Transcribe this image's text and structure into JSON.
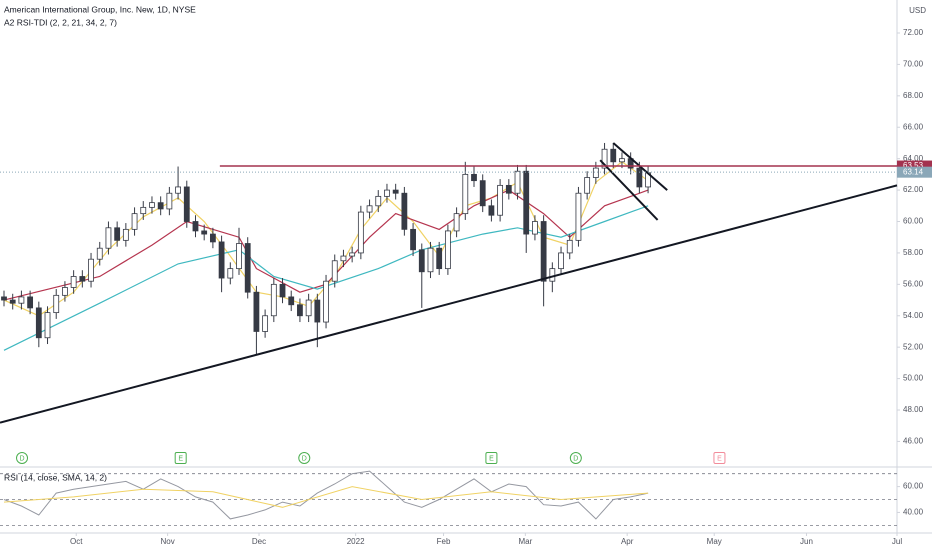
{
  "chart_data": {
    "type": "candlestick",
    "title": "American International Group, Inc. New, 1D, NYSE",
    "indicator_label": "A2 RSI-TDI (2, 2, 21, 34, 2, 7)",
    "currency": "USD",
    "xlim": [
      -0.46,
      102.6
    ],
    "ylim": [
      44.5,
      74.1
    ],
    "yticks": [
      {
        "value": 46,
        "label": "46.00"
      },
      {
        "value": 48,
        "label": "48.00"
      },
      {
        "value": 50,
        "label": "50.00"
      },
      {
        "value": 52,
        "label": "52.00"
      },
      {
        "value": 54,
        "label": "54.00"
      },
      {
        "value": 56,
        "label": "56.00"
      },
      {
        "value": 58,
        "label": "58.00"
      },
      {
        "value": 60,
        "label": "60.00"
      },
      {
        "value": 62,
        "label": "62.00"
      },
      {
        "value": 64,
        "label": "64.00"
      },
      {
        "value": 66,
        "label": "66.00"
      },
      {
        "value": 68,
        "label": "68.00"
      },
      {
        "value": 70,
        "label": "70.00"
      },
      {
        "value": 72,
        "label": "72.00"
      }
    ],
    "xticks": [
      {
        "value": 8.3,
        "label": "Oct"
      },
      {
        "value": 18.8,
        "label": "Nov"
      },
      {
        "value": 29.3,
        "label": "Dec"
      },
      {
        "value": 40.4,
        "label": "2022"
      },
      {
        "value": 50.5,
        "label": "Feb"
      },
      {
        "value": 59.9,
        "label": "Mar"
      },
      {
        "value": 71.6,
        "label": "Apr"
      },
      {
        "value": 81.6,
        "label": "May"
      },
      {
        "value": 92.2,
        "label": "Jun"
      },
      {
        "value": 102.6,
        "label": "Jul"
      }
    ],
    "up_color": "#ffffff",
    "down_color": "#363a45",
    "candles": [
      [
        55.2,
        55.6,
        54.6,
        55.0
      ],
      [
        55.0,
        55.4,
        54.4,
        54.8
      ],
      [
        54.8,
        55.6,
        54.4,
        55.2
      ],
      [
        55.2,
        55.6,
        54.1,
        54.5
      ],
      [
        54.5,
        54.9,
        52.0,
        52.6
      ],
      [
        52.6,
        54.6,
        52.2,
        54.2
      ],
      [
        54.2,
        55.7,
        53.8,
        55.3
      ],
      [
        55.3,
        56.2,
        54.9,
        55.8
      ],
      [
        55.8,
        56.9,
        55.4,
        56.5
      ],
      [
        56.5,
        56.9,
        55.8,
        56.2
      ],
      [
        56.2,
        58.0,
        55.8,
        57.6
      ],
      [
        57.6,
        58.7,
        57.2,
        58.3
      ],
      [
        58.3,
        60.0,
        57.9,
        59.6
      ],
      [
        59.6,
        60.0,
        58.4,
        58.8
      ],
      [
        58.8,
        59.9,
        58.4,
        59.5
      ],
      [
        59.5,
        60.9,
        59.1,
        60.5
      ],
      [
        60.5,
        61.3,
        60.1,
        60.9
      ],
      [
        60.9,
        61.6,
        60.5,
        61.2
      ],
      [
        61.2,
        61.6,
        60.4,
        60.8
      ],
      [
        60.8,
        62.2,
        60.4,
        61.8
      ],
      [
        61.8,
        63.5,
        61.4,
        62.2
      ],
      [
        62.2,
        62.6,
        59.6,
        60.0
      ],
      [
        60.0,
        60.4,
        59.0,
        59.4
      ],
      [
        59.4,
        59.8,
        58.8,
        59.2
      ],
      [
        59.2,
        59.6,
        58.3,
        58.7
      ],
      [
        58.7,
        59.1,
        55.5,
        56.4
      ],
      [
        56.4,
        57.4,
        56.0,
        57.0
      ],
      [
        57.0,
        59.6,
        56.6,
        58.6
      ],
      [
        58.6,
        59.0,
        55.1,
        55.5
      ],
      [
        55.5,
        55.9,
        51.5,
        53.0
      ],
      [
        53.0,
        54.4,
        52.6,
        54.0
      ],
      [
        54.0,
        56.4,
        53.6,
        56.0
      ],
      [
        56.0,
        56.4,
        54.8,
        55.2
      ],
      [
        55.2,
        55.6,
        54.3,
        54.7
      ],
      [
        54.7,
        55.1,
        53.6,
        54.0
      ],
      [
        54.0,
        55.4,
        53.6,
        55.0
      ],
      [
        55.0,
        55.4,
        52.0,
        53.6
      ],
      [
        53.6,
        56.6,
        53.2,
        56.2
      ],
      [
        56.2,
        57.9,
        55.8,
        57.5
      ],
      [
        57.5,
        58.2,
        57.1,
        57.8
      ],
      [
        57.8,
        58.4,
        57.4,
        58.0
      ],
      [
        58.0,
        61.0,
        57.6,
        60.6
      ],
      [
        60.6,
        61.4,
        60.2,
        61.0
      ],
      [
        61.0,
        62.0,
        60.6,
        61.6
      ],
      [
        61.6,
        62.4,
        61.2,
        62.0
      ],
      [
        62.0,
        62.4,
        61.4,
        61.8
      ],
      [
        61.8,
        62.2,
        59.1,
        59.5
      ],
      [
        59.5,
        59.9,
        57.8,
        58.2
      ],
      [
        58.2,
        58.6,
        54.5,
        56.8
      ],
      [
        56.8,
        58.7,
        56.4,
        58.3
      ],
      [
        58.3,
        58.7,
        56.6,
        57.0
      ],
      [
        57.0,
        59.8,
        56.6,
        59.4
      ],
      [
        59.4,
        60.9,
        59.0,
        60.5
      ],
      [
        60.5,
        63.8,
        60.1,
        63.0
      ],
      [
        63.0,
        63.5,
        62.2,
        62.6
      ],
      [
        62.6,
        63.0,
        60.6,
        61.0
      ],
      [
        61.0,
        61.4,
        60.0,
        60.4
      ],
      [
        60.4,
        62.7,
        60.0,
        62.3
      ],
      [
        62.3,
        62.7,
        61.4,
        61.8
      ],
      [
        61.8,
        63.6,
        61.4,
        63.2
      ],
      [
        63.2,
        63.6,
        58.0,
        59.2
      ],
      [
        59.2,
        60.4,
        58.8,
        60.0
      ],
      [
        60.0,
        60.4,
        54.6,
        56.2
      ],
      [
        56.2,
        57.4,
        55.5,
        57.0
      ],
      [
        57.0,
        58.4,
        56.6,
        58.0
      ],
      [
        58.0,
        59.2,
        57.6,
        58.8
      ],
      [
        58.8,
        62.2,
        58.4,
        61.8
      ],
      [
        61.8,
        63.2,
        61.4,
        62.8
      ],
      [
        62.8,
        63.8,
        62.4,
        63.4
      ],
      [
        63.4,
        65.0,
        63.0,
        64.6
      ],
      [
        64.6,
        65.0,
        63.4,
        63.8
      ],
      [
        63.8,
        64.4,
        63.4,
        64.0
      ],
      [
        64.0,
        64.4,
        63.0,
        63.4
      ],
      [
        63.4,
        63.8,
        61.8,
        62.2
      ],
      [
        62.2,
        63.5,
        61.8,
        63.1
      ]
    ],
    "series": [
      {
        "color": "#f0d264",
        "x": [
          0,
          4,
          8,
          12,
          16,
          20,
          23,
          26,
          29,
          32,
          35,
          38,
          41,
          44,
          47,
          50,
          53,
          56,
          59,
          62,
          65,
          68,
          71,
          74
        ],
        "values": [
          55.0,
          54.0,
          55.5,
          58.2,
          60.3,
          61.5,
          60.0,
          57.8,
          55.5,
          55.2,
          54.6,
          56.5,
          59.5,
          61.5,
          60.0,
          57.8,
          61.0,
          61.5,
          62.5,
          59.0,
          58.5,
          62.5,
          63.8,
          62.6
        ]
      },
      {
        "color": "#b5354f",
        "x": [
          0,
          11,
          17,
          21,
          27,
          29,
          34,
          37,
          42,
          45,
          50,
          54,
          58,
          62,
          65,
          69,
          74
        ],
        "values": [
          55.0,
          56.5,
          58.5,
          60.0,
          59.0,
          57.0,
          55.5,
          56.0,
          59.0,
          60.5,
          59.5,
          61.0,
          62.0,
          60.5,
          59.0,
          61.0,
          62.0
        ]
      },
      {
        "color": "#3fb8c0",
        "x": [
          0,
          11,
          20,
          27,
          31,
          36,
          43,
          48,
          55,
          59,
          64,
          69,
          74
        ],
        "values": [
          51.8,
          54.8,
          57.3,
          58.2,
          56.5,
          55.7,
          57.0,
          58.2,
          59.2,
          59.6,
          59.0,
          60.0,
          61.0
        ]
      }
    ],
    "price_lines": [
      {
        "value": 63.53,
        "color": "#a3324f",
        "from": 24.8
      },
      {
        "value": 63.14,
        "color": "#8aa7b8",
        "from": -0.46
      }
    ],
    "drawings": [
      {
        "color": "#131722",
        "x": [
          -0.46,
          102.6
        ],
        "values": [
          47.2,
          62.3
        ]
      },
      {
        "color": "#131722",
        "x": [
          70.0,
          76.2
        ],
        "values": [
          65.0,
          62.0
        ]
      },
      {
        "color": "#131722",
        "x": [
          68.5,
          75.1
        ],
        "values": [
          63.9,
          60.1
        ]
      }
    ],
    "events": [
      {
        "label": "D",
        "x": 2.07,
        "color": "#4caf50"
      },
      {
        "label": "E",
        "x": 20.3,
        "color": "#4caf50"
      },
      {
        "label": "D",
        "x": 34.5,
        "color": "#4caf50"
      },
      {
        "label": "E",
        "x": 56.0,
        "color": "#4caf50"
      },
      {
        "label": "D",
        "x": 65.7,
        "color": "#4caf50"
      },
      {
        "label": "E",
        "x": 82.2,
        "color": "#f28b9a"
      }
    ],
    "rsi": {
      "label": "RSI (14, close, SMA, 14, 2)",
      "ylim": [
        26.4,
        74.4
      ],
      "yticks": [
        {
          "value": 40,
          "label": "40.00"
        },
        {
          "value": 60,
          "label": "60.00"
        }
      ],
      "levels": [
        70,
        50,
        30
      ],
      "series": [
        {
          "color": "#9598a1",
          "x": [
            0,
            2,
            4,
            6,
            8,
            10,
            12,
            14,
            16,
            18,
            20,
            22,
            24,
            26,
            28,
            30,
            32,
            34,
            36,
            38,
            40,
            42,
            44,
            46,
            48,
            50,
            52,
            54,
            56,
            58,
            60,
            62,
            64,
            66,
            68,
            70,
            72,
            74
          ],
          "values": [
            50,
            45,
            38,
            55,
            58,
            60,
            62,
            64,
            58,
            66,
            60,
            52,
            48,
            35,
            38,
            42,
            48,
            45,
            55,
            62,
            70,
            72,
            60,
            48,
            44,
            50,
            58,
            66,
            56,
            62,
            60,
            46,
            45,
            48,
            35,
            50,
            52,
            55
          ]
        },
        {
          "color": "#f0d264",
          "x": [
            0,
            8,
            16,
            24,
            32,
            40,
            48,
            56,
            64,
            74
          ],
          "values": [
            48,
            52,
            58,
            56,
            44,
            60,
            50,
            56,
            50,
            55
          ]
        }
      ]
    }
  }
}
